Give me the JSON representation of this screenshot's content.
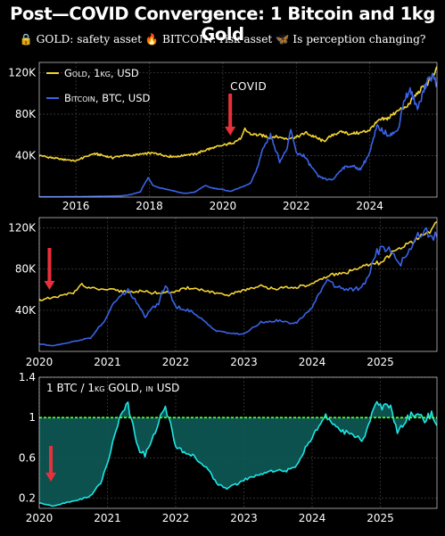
{
  "title": "Post—COVID Convergence: 1 Bitcoin and 1kg Gold",
  "subtitle": {
    "gold_icon": "lock-emoji",
    "gold_text": "GOLD: safety asset",
    "btc_icon": "fire-emoji",
    "btc_text": "BITCOIN: risk asset",
    "q_icon": "butterfly-emoji",
    "q_text": "Is perception changing?"
  },
  "colors": {
    "background": "#000000",
    "gold": "#f2d433",
    "bitcoin": "#3a63e8",
    "ratio": "#1ee6e6",
    "ratio_fill": "#0e5a57",
    "parity": "#55ff33",
    "covid_arrow": "#e8303a",
    "grid": "#3a3a3a"
  },
  "chart_data": [
    {
      "type": "line",
      "x_unit": "year",
      "xlim": [
        2015,
        2025.83
      ],
      "ylim": [
        0,
        130000
      ],
      "y_tick_values": [
        40000,
        80000,
        120000
      ],
      "y_tick_labels": [
        "40K",
        "80K",
        "120K"
      ],
      "x_tick_values": [
        2016,
        2018,
        2020,
        2022,
        2024
      ],
      "x_tick_labels": [
        "2016",
        "2018",
        "2020",
        "2022",
        "2024"
      ],
      "legend": "top-left",
      "grid": true,
      "annotation": {
        "text": "COVID",
        "x": 2020.2
      },
      "series": [
        {
          "name": "Gold, 1kg, USD",
          "color": "gold",
          "x": [
            2015,
            2015.25,
            2015.5,
            2015.75,
            2016,
            2016.25,
            2016.5,
            2016.75,
            2017,
            2017.25,
            2017.5,
            2017.75,
            2018,
            2018.25,
            2018.5,
            2018.75,
            2019,
            2019.25,
            2019.5,
            2019.75,
            2020,
            2020.25,
            2020.5,
            2020.6,
            2020.75,
            2021,
            2021.25,
            2021.5,
            2021.75,
            2022,
            2022.25,
            2022.5,
            2022.75,
            2023,
            2023.25,
            2023.5,
            2023.75,
            2024,
            2024.25,
            2024.5,
            2024.75,
            2025,
            2025.25,
            2025.5,
            2025.75,
            2025.83
          ],
          "values": [
            40000,
            38500,
            37000,
            36000,
            35000,
            39000,
            42000,
            40000,
            38000,
            40000,
            40000,
            41000,
            42500,
            42000,
            39500,
            39000,
            41000,
            41500,
            45000,
            48000,
            50000,
            52000,
            57000,
            65000,
            61000,
            60000,
            58000,
            58000,
            56500,
            58000,
            62000,
            58000,
            54000,
            60000,
            63000,
            61000,
            62000,
            65000,
            74000,
            76000,
            84000,
            86000,
            99000,
            107000,
            118000,
            126000
          ]
        },
        {
          "name": "Bitcoin, BTC, USD",
          "color": "bitcoin",
          "x": [
            2015,
            2015.5,
            2016,
            2016.5,
            2017,
            2017.25,
            2017.5,
            2017.75,
            2017.96,
            2018.1,
            2018.3,
            2018.6,
            2018.9,
            2019,
            2019.25,
            2019.5,
            2019.75,
            2020,
            2020.2,
            2020.5,
            2020.75,
            2020.95,
            2021.1,
            2021.3,
            2021.55,
            2021.75,
            2021.85,
            2022,
            2022.2,
            2022.4,
            2022.6,
            2022.85,
            2023,
            2023.25,
            2023.5,
            2023.75,
            2024,
            2024.2,
            2024.5,
            2024.75,
            2024.95,
            2025.1,
            2025.3,
            2025.5,
            2025.65,
            2025.83
          ],
          "values": [
            300,
            250,
            400,
            650,
            1000,
            1200,
            2500,
            5000,
            19000,
            11000,
            9000,
            6500,
            3800,
            3600,
            5000,
            11000,
            8500,
            7200,
            5500,
            9500,
            13000,
            29000,
            48000,
            60000,
            34000,
            47000,
            65000,
            43000,
            40000,
            30000,
            20000,
            17000,
            17000,
            28000,
            30000,
            27000,
            43000,
            68000,
            60000,
            63000,
            96000,
            102000,
            85000,
            107000,
            117000,
            111000
          ]
        }
      ]
    },
    {
      "type": "line",
      "x_unit": "year",
      "xlim": [
        2020,
        2025.83
      ],
      "ylim": [
        0,
        130000
      ],
      "y_tick_values": [
        40000,
        80000,
        120000
      ],
      "y_tick_labels": [
        "40K",
        "80K",
        "120K"
      ],
      "x_tick_values": [
        2020,
        2021,
        2022,
        2023,
        2024,
        2025
      ],
      "x_tick_labels": [
        "2020",
        "2021",
        "2022",
        "2023",
        "2024",
        "2025"
      ],
      "grid": true,
      "annotation": {
        "x": 2020.15
      },
      "series": [
        {
          "name": "",
          "color": "gold",
          "x": [
            2020,
            2020.2,
            2020.5,
            2020.6,
            2020.75,
            2021,
            2021.25,
            2021.5,
            2021.75,
            2022,
            2022.2,
            2022.5,
            2022.75,
            2023,
            2023.25,
            2023.5,
            2023.75,
            2024,
            2024.25,
            2024.5,
            2024.75,
            2025,
            2025.25,
            2025.5,
            2025.7,
            2025.83
          ],
          "values": [
            50000,
            52000,
            57000,
            65000,
            61000,
            60000,
            58000,
            58000,
            56500,
            58000,
            62000,
            58000,
            54000,
            60000,
            63000,
            61000,
            62000,
            65000,
            74000,
            76000,
            84000,
            86000,
            99000,
            107000,
            115000,
            126000
          ]
        },
        {
          "name": "",
          "color": "bitcoin",
          "x": [
            2020,
            2020.2,
            2020.5,
            2020.75,
            2020.95,
            2021.1,
            2021.3,
            2021.55,
            2021.75,
            2021.85,
            2022,
            2022.2,
            2022.4,
            2022.6,
            2022.85,
            2023,
            2023.25,
            2023.5,
            2023.75,
            2024,
            2024.2,
            2024.5,
            2024.75,
            2024.95,
            2025.1,
            2025.3,
            2025.5,
            2025.65,
            2025.83
          ],
          "values": [
            7200,
            5500,
            9500,
            13000,
            29000,
            48000,
            60000,
            34000,
            47000,
            65000,
            43000,
            40000,
            30000,
            20000,
            17000,
            17000,
            28000,
            30000,
            27000,
            43000,
            68000,
            60000,
            63000,
            96000,
            102000,
            85000,
            107000,
            117000,
            111000
          ]
        }
      ]
    },
    {
      "type": "area",
      "x_unit": "year",
      "xlim": [
        2020,
        2025.83
      ],
      "ylim": [
        0.1,
        1.4
      ],
      "y_tick_values": [
        0.2,
        0.6,
        1,
        1.4
      ],
      "y_tick_labels": [
        "0.2",
        "0.6",
        "1",
        "1.4"
      ],
      "x_tick_values": [
        2020,
        2021,
        2022,
        2023,
        2024,
        2025
      ],
      "x_tick_labels": [
        "2020",
        "2021",
        "2022",
        "2023",
        "2024",
        "2025"
      ],
      "reference_line": 1,
      "label": "1 BTC / 1kg GOLD, in USD",
      "grid": true,
      "annotation": {
        "x": 2020.17
      },
      "series": [
        {
          "name": "",
          "color": "ratio",
          "x": [
            2020,
            2020.1,
            2020.2,
            2020.35,
            2020.5,
            2020.65,
            2020.75,
            2020.9,
            2021,
            2021.1,
            2021.2,
            2021.3,
            2021.45,
            2021.55,
            2021.65,
            2021.75,
            2021.85,
            2021.95,
            2022,
            2022.15,
            2022.3,
            2022.45,
            2022.6,
            2022.75,
            2022.85,
            2023,
            2023.15,
            2023.3,
            2023.45,
            2023.6,
            2023.75,
            2023.9,
            2024,
            2024.1,
            2024.2,
            2024.35,
            2024.5,
            2024.65,
            2024.75,
            2024.85,
            2024.95,
            2025.05,
            2025.15,
            2025.25,
            2025.4,
            2025.55,
            2025.65,
            2025.75,
            2025.83
          ],
          "values": [
            0.15,
            0.14,
            0.12,
            0.15,
            0.17,
            0.2,
            0.22,
            0.35,
            0.55,
            0.8,
            1.05,
            1.12,
            0.7,
            0.62,
            0.78,
            0.95,
            1.12,
            0.85,
            0.72,
            0.65,
            0.6,
            0.5,
            0.35,
            0.3,
            0.33,
            0.38,
            0.42,
            0.45,
            0.48,
            0.47,
            0.5,
            0.7,
            0.8,
            0.9,
            1.02,
            0.9,
            0.85,
            0.8,
            0.78,
            0.98,
            1.15,
            1.1,
            1.12,
            0.85,
            1.0,
            1.05,
            0.97,
            1.05,
            0.92
          ]
        }
      ]
    }
  ]
}
